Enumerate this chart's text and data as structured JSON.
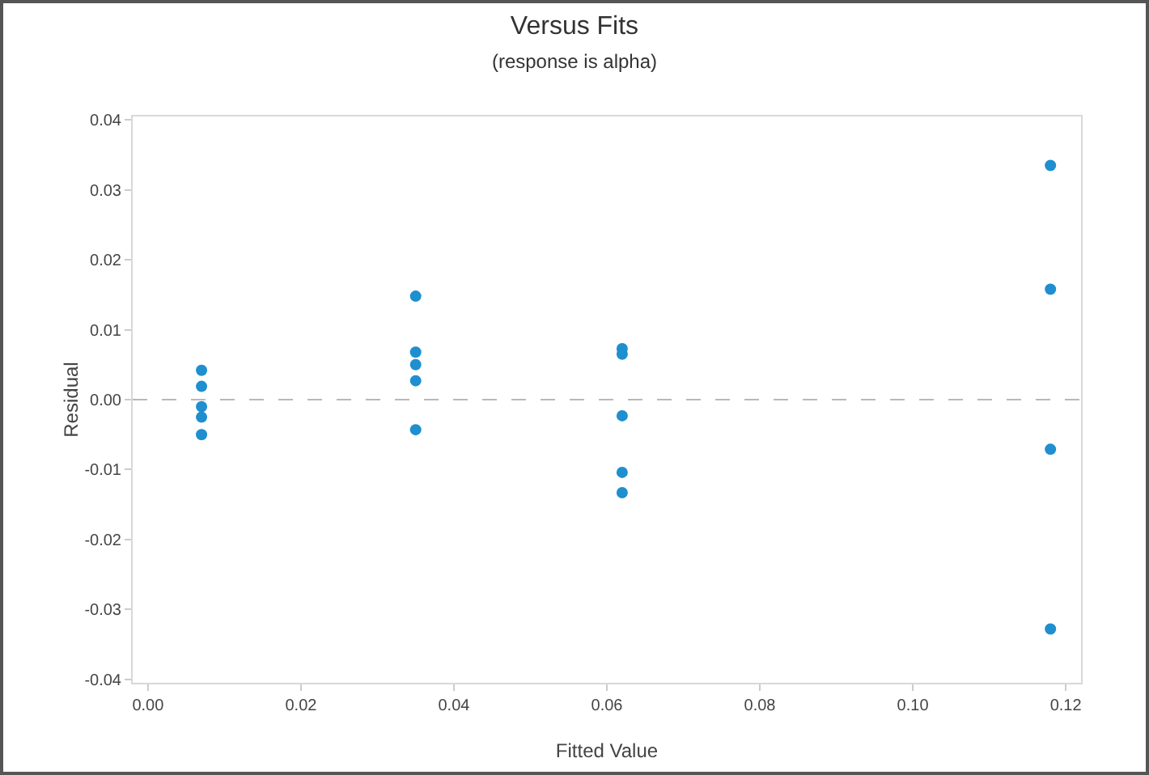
{
  "chart_data": {
    "type": "scatter",
    "title": "Versus Fits",
    "subtitle": "(response is alpha)",
    "xlabel": "Fitted Value",
    "ylabel": "Residual",
    "x": [
      0.007,
      0.007,
      0.007,
      0.007,
      0.007,
      0.035,
      0.035,
      0.035,
      0.035,
      0.035,
      0.062,
      0.062,
      0.062,
      0.062,
      0.062,
      0.118,
      0.118,
      0.118,
      0.118
    ],
    "series": [
      {
        "color": "#1f8fcf",
        "values": [
          0.0042,
          0.0019,
          -0.001,
          -0.0025,
          -0.005,
          0.0148,
          0.0068,
          0.005,
          0.0027,
          -0.0043,
          0.0073,
          0.0065,
          -0.0023,
          -0.0104,
          -0.0133,
          0.0335,
          0.0158,
          -0.0071,
          -0.0328
        ]
      }
    ],
    "xlim": [
      -0.002,
      0.122
    ],
    "ylim": [
      -0.0405,
      0.0405
    ],
    "xticks": [
      {
        "value": 0,
        "label": "0.00"
      },
      {
        "value": 0.02,
        "label": "0.02"
      },
      {
        "value": 0.04,
        "label": "0.04"
      },
      {
        "value": 0.06,
        "label": "0.06"
      },
      {
        "value": 0.08,
        "label": "0.08"
      },
      {
        "value": 0.1,
        "label": "0.10"
      },
      {
        "value": 0.12,
        "label": "0.12"
      }
    ],
    "yticks": [
      {
        "value": -0.04,
        "label": "-0.04"
      },
      {
        "value": -0.03,
        "label": "-0.03"
      },
      {
        "value": -0.02,
        "label": "-0.02"
      },
      {
        "value": -0.01,
        "label": "-0.01"
      },
      {
        "value": 0,
        "label": "0.00"
      },
      {
        "value": 0.01,
        "label": "0.01"
      },
      {
        "value": 0.02,
        "label": "0.02"
      },
      {
        "value": 0.03,
        "label": "0.03"
      },
      {
        "value": 0.04,
        "label": "0.04"
      }
    ],
    "ref_lines": [
      {
        "axis": "y",
        "value": 0,
        "color": "#b8b8b8",
        "line_style": "dashed"
      }
    ],
    "marker": "circle",
    "grid": false
  }
}
